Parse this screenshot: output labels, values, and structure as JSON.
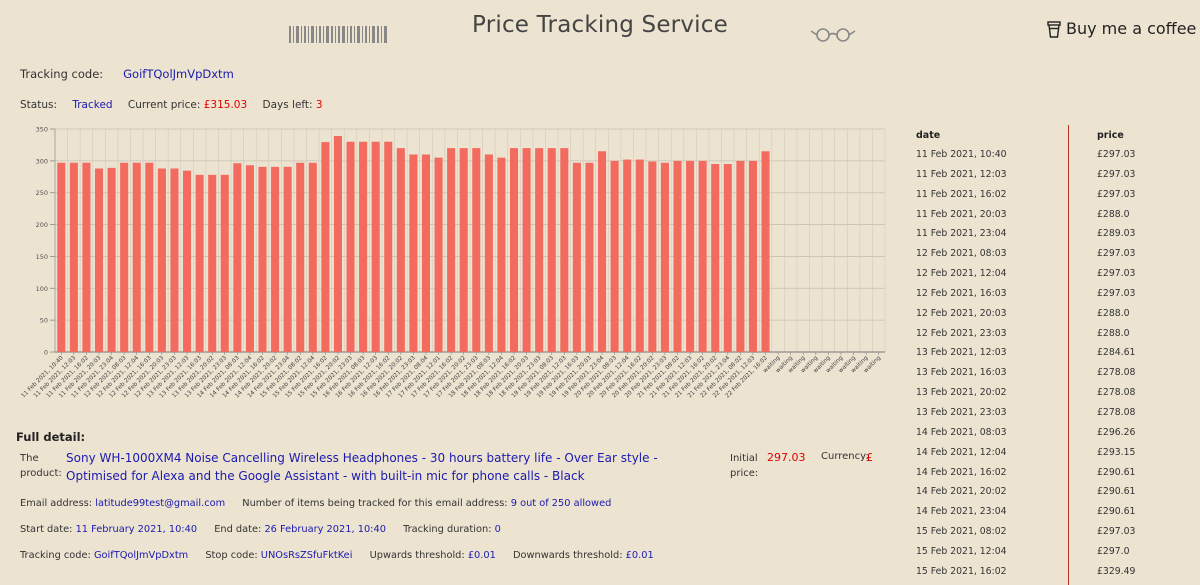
{
  "header": {
    "title": "Price Tracking Service",
    "coffee_label": "Buy me a coffee"
  },
  "tracking": {
    "label": "Tracking code:",
    "code": "GoifTQolJmVpDxtm"
  },
  "status": {
    "status_label": "Status:",
    "status_value": "Tracked",
    "price_label": "Current price:",
    "price_value": "£315.03",
    "days_label": "Days left:",
    "days_value": "3"
  },
  "chart_data": {
    "type": "bar",
    "title": "",
    "ylim": [
      0,
      350
    ],
    "yticks": [
      0,
      50,
      100,
      150,
      200,
      250,
      300,
      350
    ],
    "color": "#f26b5e",
    "categories": [
      "11 Feb 2021, 10:40",
      "11 Feb 2021, 12:03",
      "11 Feb 2021, 16:02",
      "11 Feb 2021, 20:03",
      "11 Feb 2021, 23:04",
      "12 Feb 2021, 08:03",
      "12 Feb 2021, 12:04",
      "12 Feb 2021, 16:03",
      "12 Feb 2021, 20:03",
      "12 Feb 2021, 23:03",
      "13 Feb 2021, 12:03",
      "13 Feb 2021, 16:03",
      "13 Feb 2021, 20:02",
      "13 Feb 2021, 23:03",
      "14 Feb 2021, 08:03",
      "14 Feb 2021, 12:04",
      "14 Feb 2021, 16:02",
      "14 Feb 2021, 20:02",
      "14 Feb 2021, 23:04",
      "15 Feb 2021, 08:02",
      "15 Feb 2021, 12:04",
      "15 Feb 2021, 16:02",
      "15 Feb 2021, 20:02",
      "15 Feb 2021, 23:03",
      "16 Feb 2021, 08:03",
      "16 Feb 2021, 12:03",
      "16 Feb 2021, 16:02",
      "16 Feb 2021, 20:02",
      "16 Feb 2021, 23:03",
      "17 Feb 2021, 08:04",
      "17 Feb 2021, 12:01",
      "17 Feb 2021, 16:02",
      "17 Feb 2021, 20:02",
      "17 Feb 2021, 23:03",
      "18 Feb 2021, 08:03",
      "18 Feb 2021, 12:04",
      "18 Feb 2021, 16:02",
      "18 Feb 2021, 20:03",
      "18 Feb 2021, 23:03",
      "19 Feb 2021, 08:03",
      "19 Feb 2021, 12:03",
      "19 Feb 2021, 16:03",
      "19 Feb 2021, 20:03",
      "19 Feb 2021, 23:04",
      "20 Feb 2021, 08:03",
      "20 Feb 2021, 12:04",
      "20 Feb 2021, 16:02",
      "20 Feb 2021, 20:02",
      "20 Feb 2021, 23:03",
      "21 Feb 2021, 08:02",
      "21 Feb 2021, 12:03",
      "21 Feb 2021, 16:02",
      "21 Feb 2021, 20:02",
      "21 Feb 2021, 23:04",
      "22 Feb 2021, 08:02",
      "22 Feb 2021, 12:03",
      "22 Feb 2021, 16:02",
      "waiting",
      "waiting",
      "waiting",
      "waiting",
      "waiting",
      "waiting",
      "waiting",
      "waiting",
      "waiting"
    ],
    "values": [
      297.03,
      297.03,
      297.03,
      288.0,
      289.03,
      297.03,
      297.03,
      297.03,
      288.0,
      288.0,
      284.61,
      278.08,
      278.08,
      278.08,
      296.26,
      293.15,
      290.61,
      290.61,
      290.61,
      297.03,
      297.0,
      329.49,
      339.0,
      330.0,
      330.0,
      330.0,
      330.0,
      320.0,
      310.0,
      310.0,
      305.0,
      320.0,
      320.0,
      320.0,
      310.0,
      305.0,
      320.0,
      320.0,
      320.0,
      320.0,
      320.0,
      297.0,
      297.0,
      315.0,
      300.0,
      302.0,
      302.0,
      299.0,
      297.0,
      300.0,
      300.0,
      300.0,
      295.0,
      295.0,
      300.0,
      300.0,
      315.03,
      null,
      null,
      null,
      null,
      null,
      null,
      null,
      null,
      null
    ]
  },
  "detail": {
    "heading": "Full detail:",
    "product_label": "The product:",
    "product_name": "Sony WH-1000XM4 Noise Cancelling Wireless Headphones - 30 hours battery life - Over Ear style - Optimised for Alexa and the Google Assistant - with built-in mic for phone calls - Black",
    "initial_label": "Initial price:",
    "initial_value": "297.03",
    "currency_label": "Currency:",
    "currency_value": "£",
    "email_label": "Email address:",
    "email_value": "latitude99test@gmail.com",
    "items_label": "Number of items being tracked for this email address:",
    "items_value": "9 out of 250 allowed",
    "start_label": "Start date:",
    "start_value": "11 February 2021, 10:40",
    "end_label": "End date:",
    "end_value": "26 February 2021, 10:40",
    "duration_label": "Tracking duration:",
    "duration_value": "0",
    "code_label": "Tracking code:",
    "code_value": "GoifTQolJmVpDxtm",
    "stop_label": "Stop code:",
    "stop_value": "UNOsRsZSfuFktKei",
    "up_label": "Upwards threshold:",
    "up_value": "£0.01",
    "down_label": "Downwards threshold:",
    "down_value": "£0.01"
  },
  "table": {
    "date_header": "date",
    "price_header": "price",
    "rows": [
      {
        "date": "11 Feb 2021, 10:40",
        "price": "£297.03"
      },
      {
        "date": "11 Feb 2021, 12:03",
        "price": "£297.03"
      },
      {
        "date": "11 Feb 2021, 16:02",
        "price": "£297.03"
      },
      {
        "date": "11 Feb 2021, 20:03",
        "price": "£288.0"
      },
      {
        "date": "11 Feb 2021, 23:04",
        "price": "£289.03"
      },
      {
        "date": "12 Feb 2021, 08:03",
        "price": "£297.03"
      },
      {
        "date": "12 Feb 2021, 12:04",
        "price": "£297.03"
      },
      {
        "date": "12 Feb 2021, 16:03",
        "price": "£297.03"
      },
      {
        "date": "12 Feb 2021, 20:03",
        "price": "£288.0"
      },
      {
        "date": "12 Feb 2021, 23:03",
        "price": "£288.0"
      },
      {
        "date": "13 Feb 2021, 12:03",
        "price": "£284.61"
      },
      {
        "date": "13 Feb 2021, 16:03",
        "price": "£278.08"
      },
      {
        "date": "13 Feb 2021, 20:02",
        "price": "£278.08"
      },
      {
        "date": "13 Feb 2021, 23:03",
        "price": "£278.08"
      },
      {
        "date": "14 Feb 2021, 08:03",
        "price": "£296.26"
      },
      {
        "date": "14 Feb 2021, 12:04",
        "price": "£293.15"
      },
      {
        "date": "14 Feb 2021, 16:02",
        "price": "£290.61"
      },
      {
        "date": "14 Feb 2021, 20:02",
        "price": "£290.61"
      },
      {
        "date": "14 Feb 2021, 23:04",
        "price": "£290.61"
      },
      {
        "date": "15 Feb 2021, 08:02",
        "price": "£297.03"
      },
      {
        "date": "15 Feb 2021, 12:04",
        "price": "£297.0"
      },
      {
        "date": "15 Feb 2021, 16:02",
        "price": "£329.49"
      }
    ]
  }
}
